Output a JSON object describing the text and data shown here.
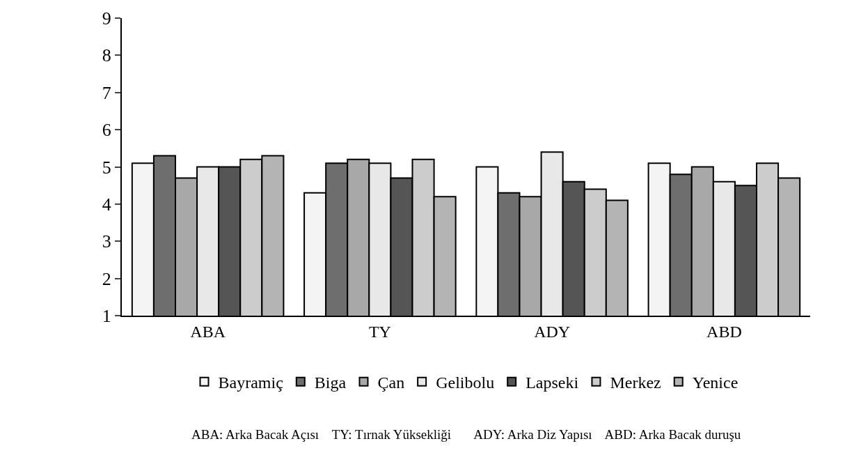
{
  "chart_data": {
    "type": "bar",
    "categories": [
      "ABA",
      "TY",
      "ADY",
      "ABD"
    ],
    "series": [
      {
        "name": "Bayramiç",
        "color": "#f4f4f4",
        "values": [
          5.1,
          4.3,
          5.0,
          5.1
        ]
      },
      {
        "name": "Biga",
        "color": "#6e6e6e",
        "values": [
          5.3,
          5.1,
          4.3,
          4.8
        ]
      },
      {
        "name": "Çan",
        "color": "#a8a8a8",
        "values": [
          4.7,
          5.2,
          4.2,
          5.0
        ]
      },
      {
        "name": "Gelibolu",
        "color": "#e8e8e8",
        "values": [
          5.0,
          5.1,
          5.4,
          4.6
        ]
      },
      {
        "name": "Lapseki",
        "color": "#555555",
        "values": [
          5.0,
          4.7,
          4.6,
          4.5
        ]
      },
      {
        "name": "Merkez",
        "color": "#cccccc",
        "values": [
          5.2,
          5.2,
          4.4,
          5.1
        ]
      },
      {
        "name": "Yenice",
        "color": "#b4b4b4",
        "values": [
          5.3,
          4.2,
          4.1,
          4.7
        ]
      }
    ],
    "ylim": [
      1,
      9
    ],
    "yticks": [
      1,
      2,
      3,
      4,
      5,
      6,
      7,
      8,
      9
    ],
    "legend": "bottom",
    "annotations": [
      "ABA: Arka Bacak Açısı    TY: Tırnak Yüksekliği       ADY: Arka Diz Yapısı    ABD: Arka Bacak duruşu"
    ]
  }
}
